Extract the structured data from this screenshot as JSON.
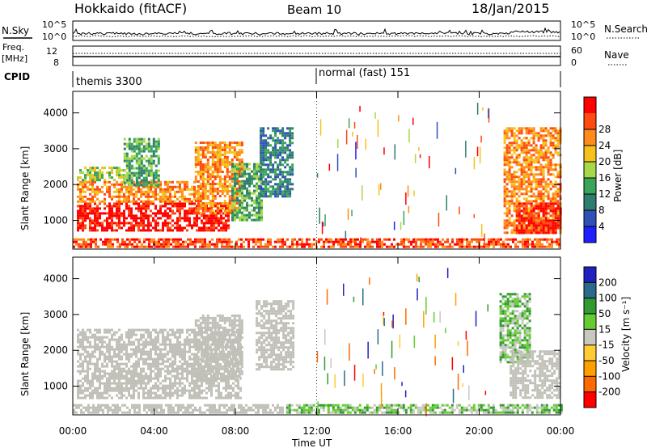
{
  "header": {
    "title": "Hokkaido (fitACF)",
    "beam": "Beam 10",
    "date": "18/Jan/2015"
  },
  "strips": {
    "nsky": {
      "label": "N.Sky",
      "left_top": "10^5",
      "left_bottom": "10^0",
      "right_top": "10^5",
      "right_bottom": "10^0",
      "right_label": "N.Search"
    },
    "freq": {
      "label_line1": "Freq.",
      "label_line2": "[MHz]",
      "left_top": "12",
      "left_bottom": "8",
      "right_top": "60",
      "right_bottom": "0",
      "right_label": "Nave"
    },
    "cpid": {
      "label": "CPID",
      "mode1": "themis 3300",
      "mode2": "normal (fast) 151"
    }
  },
  "colors": {
    "power_scale": [
      "#1f1fff",
      "#3050b8",
      "#2e7d6e",
      "#3aa55a",
      "#a6d84a",
      "#f4c21a",
      "#ff8c1a",
      "#ff4a10",
      "#ff0000"
    ],
    "velocity_scale": [
      "#ff0000",
      "#ff6a00",
      "#ffa000",
      "#ffcc33",
      "#c8c8c0",
      "#66cc33",
      "#339933",
      "#2a6a8a",
      "#2020c0"
    ],
    "ground_scatter": "#c0c0b8"
  },
  "chart_data": [
    {
      "type": "heatmap",
      "panel": "power",
      "ylabel": "Slant Range [km]",
      "y_ticks": [
        1000,
        2000,
        3000,
        4000
      ],
      "ylim": [
        200,
        4600
      ],
      "x_ticks": [
        "00:00",
        "04:00",
        "08:00",
        "12:00",
        "16:00",
        "20:00",
        "00:00"
      ],
      "xlim_hours": [
        0,
        24
      ],
      "colorbar": {
        "label": "Power [dB]",
        "ticks": [
          4,
          8,
          12,
          16,
          20,
          24,
          28
        ]
      },
      "regions": [
        {
          "t": [
            0.2,
            7.7
          ],
          "r": [
            700,
            1500
          ],
          "level": 8
        },
        {
          "t": [
            0.2,
            6.0
          ],
          "r": [
            1500,
            2100
          ],
          "level": 6
        },
        {
          "t": [
            0.2,
            2.5
          ],
          "r": [
            2100,
            2500
          ],
          "level": 4
        },
        {
          "t": [
            6.0,
            8.3
          ],
          "r": [
            1200,
            3200
          ],
          "level": 6
        },
        {
          "t": [
            2.5,
            4.2
          ],
          "r": [
            2000,
            3300
          ],
          "level": 3
        },
        {
          "t": [
            7.8,
            9.3
          ],
          "r": [
            1000,
            2600
          ],
          "level": 3
        },
        {
          "t": [
            9.2,
            10.8
          ],
          "r": [
            1700,
            3600
          ],
          "level": 2
        },
        {
          "t": [
            0.0,
            24.0
          ],
          "r": [
            250,
            500
          ],
          "level": 7
        },
        {
          "t": [
            21.2,
            24.0
          ],
          "r": [
            650,
            3600
          ],
          "level": 6
        },
        {
          "t": [
            21.8,
            24.0
          ],
          "r": [
            650,
            1500
          ],
          "level": 8
        }
      ]
    },
    {
      "type": "heatmap",
      "panel": "velocity",
      "ylabel": "Slant Range [km]",
      "xlabel": "Time UT",
      "y_ticks": [
        1000,
        2000,
        3000,
        4000
      ],
      "ylim": [
        200,
        4600
      ],
      "x_ticks": [
        "00:00",
        "04:00",
        "08:00",
        "12:00",
        "16:00",
        "20:00",
        "00:00"
      ],
      "xlim_hours": [
        0,
        24
      ],
      "colorbar": {
        "label": "Velocity [m s⁻¹]",
        "ticks": [
          200,
          100,
          50,
          15,
          -15,
          -50,
          -100,
          -200
        ]
      },
      "regions": [
        {
          "t": [
            0.2,
            8.3
          ],
          "r": [
            700,
            2600
          ],
          "level": "ground"
        },
        {
          "t": [
            6.0,
            8.3
          ],
          "r": [
            1200,
            3000
          ],
          "level": "ground"
        },
        {
          "t": [
            9.0,
            10.8
          ],
          "r": [
            1500,
            3400
          ],
          "level": "ground"
        },
        {
          "t": [
            10.5,
            24.0
          ],
          "r": [
            250,
            500
          ],
          "level": 5
        },
        {
          "t": [
            0.0,
            10.5
          ],
          "r": [
            250,
            500
          ],
          "level": "ground"
        },
        {
          "t": [
            21.0,
            22.5
          ],
          "r": [
            1700,
            3600
          ],
          "level": 5
        },
        {
          "t": [
            21.5,
            24.0
          ],
          "r": [
            650,
            2000
          ],
          "level": "ground"
        }
      ]
    }
  ]
}
